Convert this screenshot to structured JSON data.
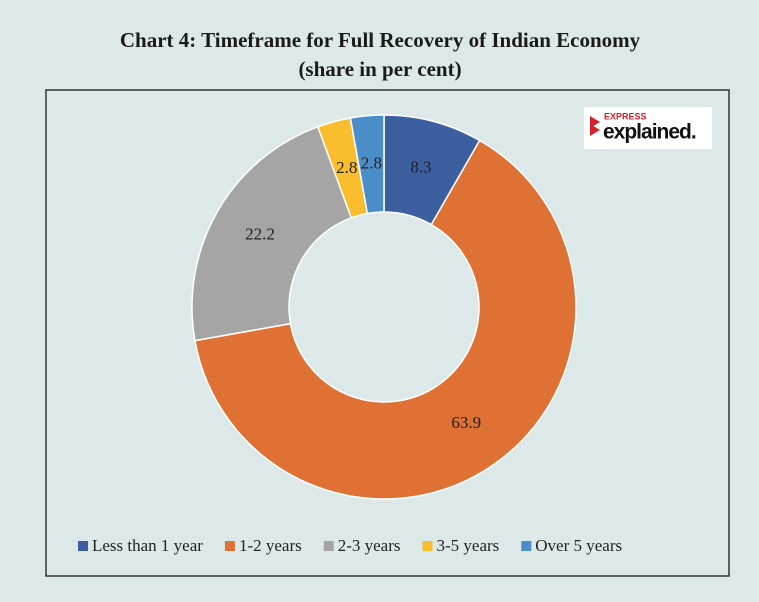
{
  "chart_data": {
    "type": "pie",
    "title": "Chart 4: Timeframe for Full Recovery of Indian Economy",
    "subtitle": "(share in per cent)",
    "categories": [
      "Less than 1 year",
      "1-2 years",
      "2-3 years",
      "3-5 years",
      "Over 5 years"
    ],
    "values": [
      8.3,
      63.9,
      22.2,
      2.8,
      2.8
    ],
    "colors": [
      "#3b5f9f",
      "#e07135",
      "#a5a5a5",
      "#f9bd2e",
      "#4b8dc8"
    ],
    "donut": true,
    "legend": "bottom"
  },
  "logo": {
    "top": "EXPRESS",
    "main": "explained."
  }
}
